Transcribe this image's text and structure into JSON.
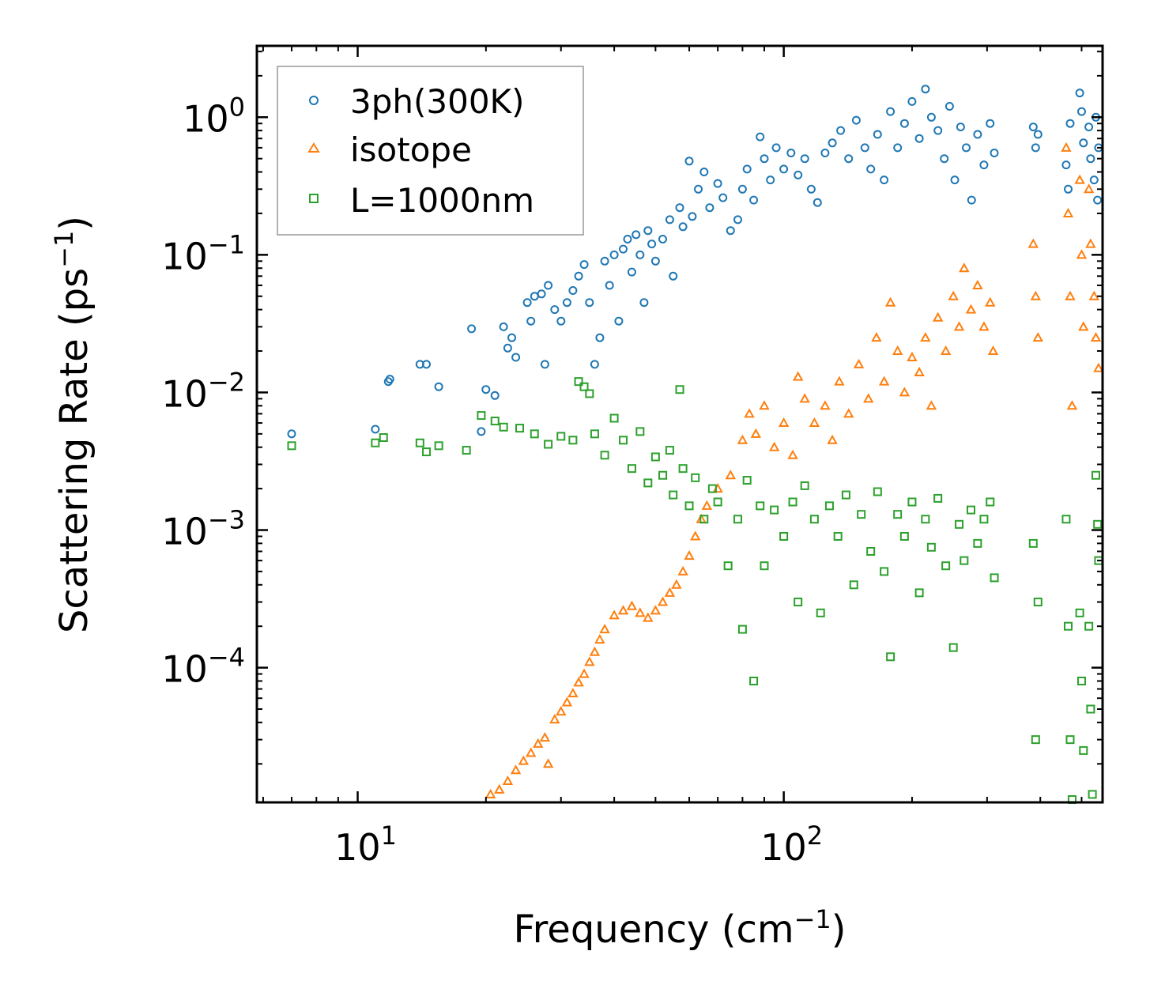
{
  "chart_data": {
    "type": "scatter",
    "title": "",
    "xlabel": "Frequency (cm",
    "xlabel_sup": "−1",
    "xlabel_end": ")",
    "ylabel": "Scattering Rate (ps",
    "ylabel_sup": "−1",
    "ylabel_end": ")",
    "xscale": "log",
    "yscale": "log",
    "xlim": [
      5.8,
      560
    ],
    "ylim": [
      1.05e-05,
      3.3
    ],
    "grid": false,
    "legend_position": "top-left",
    "x_ticks": [
      {
        "value": 10,
        "base": "10",
        "exp": "1"
      },
      {
        "value": 100,
        "base": "10",
        "exp": "2"
      }
    ],
    "y_ticks": [
      {
        "value": 1,
        "base": "10",
        "exp": "0"
      },
      {
        "value": 0.1,
        "base": "10",
        "exp": "−1"
      },
      {
        "value": 0.01,
        "base": "10",
        "exp": "−2"
      },
      {
        "value": 0.001,
        "base": "10",
        "exp": "−3"
      },
      {
        "value": 0.0001,
        "base": "10",
        "exp": "−4"
      }
    ],
    "series": [
      {
        "name": "3ph(300K)",
        "marker": "circle",
        "color": "#1f77b4",
        "points": [
          [
            7.0,
            0.005
          ],
          [
            11.0,
            0.0054
          ],
          [
            11.8,
            0.012
          ],
          [
            11.9,
            0.0125
          ],
          [
            14.0,
            0.016
          ],
          [
            14.5,
            0.016
          ],
          [
            15.5,
            0.011
          ],
          [
            18.5,
            0.029
          ],
          [
            19.5,
            0.0052
          ],
          [
            20.0,
            0.0105
          ],
          [
            21.0,
            0.0095
          ],
          [
            22.0,
            0.03
          ],
          [
            22.5,
            0.021
          ],
          [
            23.0,
            0.025
          ],
          [
            23.5,
            0.018
          ],
          [
            25.0,
            0.045
          ],
          [
            25.5,
            0.033
          ],
          [
            26.0,
            0.05
          ],
          [
            27.0,
            0.052
          ],
          [
            27.5,
            0.016
          ],
          [
            28.0,
            0.06
          ],
          [
            29.0,
            0.04
          ],
          [
            30.0,
            0.033
          ],
          [
            31.0,
            0.045
          ],
          [
            32.0,
            0.055
          ],
          [
            33.0,
            0.07
          ],
          [
            34.0,
            0.085
          ],
          [
            35.0,
            0.045
          ],
          [
            36.0,
            0.016
          ],
          [
            37.0,
            0.025
          ],
          [
            38.0,
            0.09
          ],
          [
            39.0,
            0.06
          ],
          [
            40.0,
            0.1
          ],
          [
            41.0,
            0.033
          ],
          [
            42.0,
            0.11
          ],
          [
            43.0,
            0.13
          ],
          [
            44.0,
            0.075
          ],
          [
            45.0,
            0.14
          ],
          [
            46.0,
            0.1
          ],
          [
            47.0,
            0.045
          ],
          [
            48.0,
            0.15
          ],
          [
            49.0,
            0.12
          ],
          [
            50.0,
            0.09
          ],
          [
            52.0,
            0.13
          ],
          [
            54.0,
            0.18
          ],
          [
            55.0,
            0.07
          ],
          [
            57.0,
            0.22
          ],
          [
            58.0,
            0.16
          ],
          [
            60.0,
            0.48
          ],
          [
            61.0,
            0.19
          ],
          [
            63.0,
            0.3
          ],
          [
            65.0,
            0.4
          ],
          [
            67.0,
            0.22
          ],
          [
            70.0,
            0.33
          ],
          [
            72.0,
            0.26
          ],
          [
            75.0,
            0.15
          ],
          [
            78.0,
            0.18
          ],
          [
            80.0,
            0.3
          ],
          [
            82.0,
            0.42
          ],
          [
            85.0,
            0.25
          ],
          [
            88.0,
            0.72
          ],
          [
            90.0,
            0.5
          ],
          [
            93.0,
            0.35
          ],
          [
            96.0,
            0.6
          ],
          [
            100.0,
            0.42
          ],
          [
            104.0,
            0.55
          ],
          [
            108.0,
            0.38
          ],
          [
            112.0,
            0.5
          ],
          [
            116.0,
            0.3
          ],
          [
            120.0,
            0.24
          ],
          [
            125.0,
            0.55
          ],
          [
            130.0,
            0.65
          ],
          [
            136.0,
            0.8
          ],
          [
            142.0,
            0.5
          ],
          [
            148.0,
            0.95
          ],
          [
            155.0,
            0.6
          ],
          [
            160.0,
            0.42
          ],
          [
            166.0,
            0.75
          ],
          [
            172.0,
            0.35
          ],
          [
            178.0,
            1.1
          ],
          [
            185.0,
            0.6
          ],
          [
            192.0,
            0.9
          ],
          [
            200.0,
            1.3
          ],
          [
            208.0,
            0.7
          ],
          [
            215.0,
            1.6
          ],
          [
            222.0,
            1.0
          ],
          [
            230.0,
            0.8
          ],
          [
            238.0,
            0.5
          ],
          [
            245.0,
            1.2
          ],
          [
            252.0,
            0.35
          ],
          [
            260.0,
            0.85
          ],
          [
            268.0,
            0.6
          ],
          [
            276.0,
            0.25
          ],
          [
            285.0,
            0.75
          ],
          [
            295.0,
            0.45
          ],
          [
            305.0,
            0.9
          ],
          [
            312.0,
            0.55
          ],
          [
            385.0,
            0.85
          ],
          [
            390.0,
            0.6
          ],
          [
            395.0,
            0.75
          ],
          [
            460.0,
            0.45
          ],
          [
            465.0,
            0.3
          ],
          [
            470.0,
            0.9
          ],
          [
            495.0,
            1.5
          ],
          [
            500.0,
            1.1
          ],
          [
            505.0,
            0.65
          ],
          [
            520.0,
            0.85
          ],
          [
            525.0,
            0.5
          ],
          [
            535.0,
            0.35
          ],
          [
            540.0,
            1.0
          ],
          [
            545.0,
            0.25
          ],
          [
            548.0,
            0.6
          ]
        ]
      },
      {
        "name": "isotope",
        "marker": "triangle",
        "color": "#ff7f0e",
        "points": [
          [
            20.5,
            1.2e-05
          ],
          [
            21.5,
            1.3e-05
          ],
          [
            22.5,
            1.5e-05
          ],
          [
            23.5,
            1.8e-05
          ],
          [
            24.5,
            2.1e-05
          ],
          [
            25.5,
            2.4e-05
          ],
          [
            26.5,
            2.8e-05
          ],
          [
            27.5,
            3.1e-05
          ],
          [
            28.0,
            2e-05
          ],
          [
            29.0,
            4.2e-05
          ],
          [
            30.0,
            4.8e-05
          ],
          [
            31.0,
            5.6e-05
          ],
          [
            32.0,
            6.5e-05
          ],
          [
            33.0,
            7.8e-05
          ],
          [
            34.0,
            9e-05
          ],
          [
            35.0,
            0.00011
          ],
          [
            36.0,
            0.00013
          ],
          [
            37.0,
            0.00016
          ],
          [
            38.0,
            0.00019
          ],
          [
            40.0,
            0.00024
          ],
          [
            42.0,
            0.00026
          ],
          [
            44.0,
            0.00028
          ],
          [
            46.0,
            0.00025
          ],
          [
            48.0,
            0.00023
          ],
          [
            50.0,
            0.00026
          ],
          [
            52.0,
            0.0003
          ],
          [
            54.0,
            0.00035
          ],
          [
            56.0,
            0.0004
          ],
          [
            58.0,
            0.0005
          ],
          [
            60.0,
            0.00065
          ],
          [
            62.0,
            0.0009
          ],
          [
            64.0,
            0.0012
          ],
          [
            66.0,
            0.0015
          ],
          [
            70.0,
            0.002
          ],
          [
            75.0,
            0.0025
          ],
          [
            80.0,
            0.0045
          ],
          [
            83.0,
            0.007
          ],
          [
            86.0,
            0.005
          ],
          [
            90.0,
            0.008
          ],
          [
            95.0,
            0.004
          ],
          [
            100.0,
            0.006
          ],
          [
            105.0,
            0.0035
          ],
          [
            108.0,
            0.013
          ],
          [
            112.0,
            0.009
          ],
          [
            118.0,
            0.006
          ],
          [
            125.0,
            0.008
          ],
          [
            130.0,
            0.0045
          ],
          [
            135.0,
            0.012
          ],
          [
            142.0,
            0.007
          ],
          [
            150.0,
            0.016
          ],
          [
            158.0,
            0.009
          ],
          [
            165.0,
            0.025
          ],
          [
            172.0,
            0.012
          ],
          [
            178.0,
            0.045
          ],
          [
            185.0,
            0.02
          ],
          [
            192.0,
            0.01
          ],
          [
            200.0,
            0.018
          ],
          [
            208.0,
            0.014
          ],
          [
            215.0,
            0.025
          ],
          [
            222.0,
            0.008
          ],
          [
            230.0,
            0.035
          ],
          [
            240.0,
            0.02
          ],
          [
            250.0,
            0.05
          ],
          [
            258.0,
            0.03
          ],
          [
            265.0,
            0.08
          ],
          [
            275.0,
            0.04
          ],
          [
            285.0,
            0.06
          ],
          [
            295.0,
            0.03
          ],
          [
            305.0,
            0.045
          ],
          [
            310.0,
            0.02
          ],
          [
            385.0,
            0.12
          ],
          [
            390.0,
            0.05
          ],
          [
            395.0,
            0.025
          ],
          [
            460.0,
            0.6
          ],
          [
            465.0,
            0.2
          ],
          [
            470.0,
            0.05
          ],
          [
            475.0,
            0.008
          ],
          [
            495.0,
            0.35
          ],
          [
            500.0,
            0.1
          ],
          [
            505.0,
            0.03
          ],
          [
            520.0,
            0.3
          ],
          [
            525.0,
            0.12
          ],
          [
            535.0,
            0.05
          ],
          [
            540.0,
            0.025
          ],
          [
            548.0,
            0.015
          ]
        ]
      },
      {
        "name": "L=1000nm",
        "marker": "square",
        "color": "#2ca02c",
        "points": [
          [
            7.0,
            0.0041
          ],
          [
            11.0,
            0.0043
          ],
          [
            11.5,
            0.0047
          ],
          [
            14.0,
            0.0043
          ],
          [
            14.5,
            0.0037
          ],
          [
            15.5,
            0.0041
          ],
          [
            18.0,
            0.0038
          ],
          [
            19.5,
            0.0068
          ],
          [
            21.0,
            0.0062
          ],
          [
            22.0,
            0.0056
          ],
          [
            24.0,
            0.0055
          ],
          [
            26.0,
            0.005
          ],
          [
            28.0,
            0.0042
          ],
          [
            30.0,
            0.0048
          ],
          [
            32.0,
            0.0045
          ],
          [
            33.0,
            0.012
          ],
          [
            34.0,
            0.011
          ],
          [
            35.0,
            0.0098
          ],
          [
            36.0,
            0.005
          ],
          [
            38.0,
            0.0035
          ],
          [
            40.0,
            0.0065
          ],
          [
            42.0,
            0.0045
          ],
          [
            44.0,
            0.0028
          ],
          [
            46.0,
            0.0052
          ],
          [
            48.0,
            0.0022
          ],
          [
            50.0,
            0.0034
          ],
          [
            52.0,
            0.0025
          ],
          [
            54.0,
            0.0038
          ],
          [
            55.0,
            0.0018
          ],
          [
            57.0,
            0.0105
          ],
          [
            58.0,
            0.0028
          ],
          [
            60.0,
            0.0015
          ],
          [
            62.0,
            0.0024
          ],
          [
            65.0,
            0.0012
          ],
          [
            68.0,
            0.002
          ],
          [
            70.0,
            0.0016
          ],
          [
            74.0,
            0.00055
          ],
          [
            78.0,
            0.0012
          ],
          [
            80.0,
            0.00019
          ],
          [
            82.0,
            0.0023
          ],
          [
            85.0,
            8e-05
          ],
          [
            88.0,
            0.0015
          ],
          [
            90.0,
            0.00055
          ],
          [
            95.0,
            0.0014
          ],
          [
            100.0,
            0.0009
          ],
          [
            105.0,
            0.0016
          ],
          [
            108.0,
            0.0003
          ],
          [
            112.0,
            0.0021
          ],
          [
            118.0,
            0.0012
          ],
          [
            122.0,
            0.00025
          ],
          [
            128.0,
            0.0015
          ],
          [
            134.0,
            0.0009
          ],
          [
            140.0,
            0.0018
          ],
          [
            146.0,
            0.0004
          ],
          [
            152.0,
            0.0013
          ],
          [
            160.0,
            0.0007
          ],
          [
            166.0,
            0.0019
          ],
          [
            172.0,
            0.0005
          ],
          [
            178.0,
            0.00012
          ],
          [
            185.0,
            0.0013
          ],
          [
            192.0,
            0.0009
          ],
          [
            200.0,
            0.0016
          ],
          [
            208.0,
            0.00035
          ],
          [
            215.0,
            0.0012
          ],
          [
            222.0,
            0.00075
          ],
          [
            230.0,
            0.0017
          ],
          [
            240.0,
            0.00055
          ],
          [
            250.0,
            0.00014
          ],
          [
            258.0,
            0.0011
          ],
          [
            265.0,
            0.0006
          ],
          [
            275.0,
            0.0014
          ],
          [
            285.0,
            0.0008
          ],
          [
            295.0,
            0.0012
          ],
          [
            305.0,
            0.0016
          ],
          [
            312.0,
            0.00045
          ],
          [
            385.0,
            0.0008
          ],
          [
            390.0,
            3e-05
          ],
          [
            395.0,
            0.0003
          ],
          [
            460.0,
            0.0012
          ],
          [
            465.0,
            0.0002
          ],
          [
            470.0,
            3e-05
          ],
          [
            475.0,
            1.1e-05
          ],
          [
            495.0,
            0.00025
          ],
          [
            500.0,
            8e-05
          ],
          [
            505.0,
            2.5e-05
          ],
          [
            520.0,
            0.0002
          ],
          [
            525.0,
            5e-05
          ],
          [
            530.0,
            1.2e-05
          ],
          [
            540.0,
            0.0025
          ],
          [
            545.0,
            0.0011
          ],
          [
            548.0,
            0.0006
          ]
        ]
      }
    ]
  }
}
